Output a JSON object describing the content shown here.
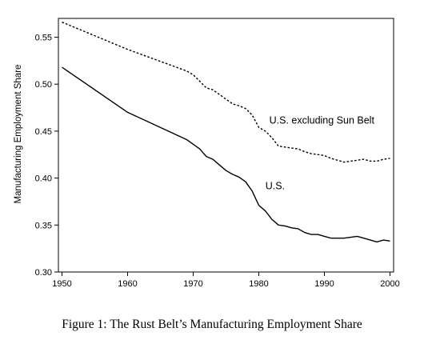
{
  "chart_data": {
    "type": "line",
    "ylabel": "Manufacturing Employment Share",
    "xlabel": "",
    "xlim": [
      1950,
      2000
    ],
    "ylim": [
      0.3,
      0.57
    ],
    "x_ticks": [
      1950,
      1960,
      1970,
      1980,
      1990,
      2000
    ],
    "y_ticks": [
      0.3,
      0.35,
      0.4,
      0.45,
      0.5,
      0.55
    ],
    "y_tick_labels": [
      "0.30",
      "0.35",
      "0.40",
      "0.45",
      "0.50",
      "0.55"
    ],
    "grid": false,
    "series": [
      {
        "name": "U.S. excluding Sun Belt",
        "style": "dashed",
        "color": "#000000",
        "x": [
          1950,
          1960,
          1969,
          1970,
          1971,
          1972,
          1973,
          1974,
          1975,
          1976,
          1977,
          1978,
          1979,
          1980,
          1981,
          1982,
          1983,
          1984,
          1985,
          1986,
          1987,
          1988,
          1989,
          1990,
          1991,
          1992,
          1993,
          1994,
          1995,
          1996,
          1997,
          1998,
          1999,
          2000
        ],
        "values": [
          0.566,
          0.537,
          0.514,
          0.51,
          0.503,
          0.496,
          0.494,
          0.489,
          0.484,
          0.479,
          0.477,
          0.474,
          0.467,
          0.454,
          0.45,
          0.443,
          0.434,
          0.433,
          0.432,
          0.431,
          0.428,
          0.426,
          0.425,
          0.424,
          0.421,
          0.419,
          0.417,
          0.418,
          0.419,
          0.42,
          0.418,
          0.418,
          0.42,
          0.421
        ]
      },
      {
        "name": "U.S.",
        "style": "solid",
        "color": "#000000",
        "x": [
          1950,
          1960,
          1969,
          1970,
          1971,
          1972,
          1973,
          1974,
          1975,
          1976,
          1977,
          1978,
          1979,
          1980,
          1981,
          1982,
          1983,
          1984,
          1985,
          1986,
          1987,
          1988,
          1989,
          1990,
          1991,
          1992,
          1993,
          1994,
          1995,
          1996,
          1997,
          1998,
          1999,
          2000
        ],
        "values": [
          0.518,
          0.47,
          0.441,
          0.436,
          0.431,
          0.423,
          0.42,
          0.414,
          0.408,
          0.404,
          0.401,
          0.396,
          0.386,
          0.371,
          0.365,
          0.356,
          0.35,
          0.349,
          0.347,
          0.346,
          0.342,
          0.34,
          0.34,
          0.338,
          0.336,
          0.336,
          0.336,
          0.337,
          0.338,
          0.336,
          0.334,
          0.332,
          0.334,
          0.333
        ]
      }
    ],
    "annotations": [
      {
        "text": "U.S. excluding Sun Belt",
        "x": 1981.6,
        "y": 0.458
      },
      {
        "text": "U.S.",
        "x": 1981.0,
        "y": 0.388
      }
    ]
  },
  "caption": "Figure 1: The Rust Belt’s Manufacturing Employment Share"
}
